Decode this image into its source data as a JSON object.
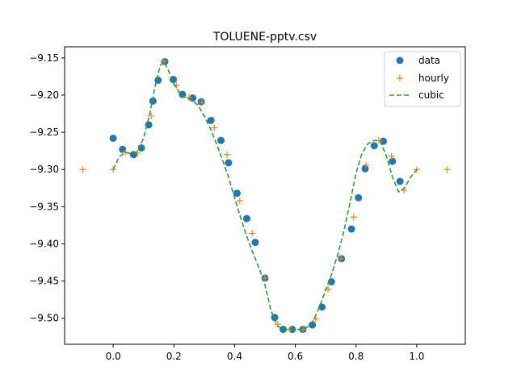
{
  "chart_data": {
    "type": "line",
    "title": "TOLUENE-pptv.csv",
    "xlabel": "",
    "ylabel": "",
    "xlim": [
      -0.16,
      1.16
    ],
    "ylim": [
      -9.535,
      -9.135
    ],
    "xticks": [
      0.0,
      0.2,
      0.4,
      0.6,
      0.8,
      1.0
    ],
    "xtick_labels": [
      "0.0",
      "0.2",
      "0.4",
      "0.6",
      "0.8",
      "1.0"
    ],
    "yticks": [
      -9.15,
      -9.2,
      -9.25,
      -9.3,
      -9.35,
      -9.4,
      -9.45,
      -9.5
    ],
    "ytick_labels": [
      "−9.15",
      "−9.20",
      "−9.25",
      "−9.30",
      "−9.35",
      "−9.40",
      "−9.45",
      "−9.50"
    ],
    "grid": false,
    "legend_position": "top-right",
    "series": [
      {
        "name": "data",
        "marker": "circle",
        "color": "#1f77b4",
        "x": [
          0.0,
          0.031,
          0.067,
          0.093,
          0.117,
          0.131,
          0.148,
          0.17,
          0.198,
          0.228,
          0.262,
          0.29,
          0.322,
          0.355,
          0.38,
          0.408,
          0.44,
          0.468,
          0.5,
          0.532,
          0.56,
          0.59,
          0.625,
          0.656,
          0.688,
          0.719,
          0.752,
          0.785,
          0.808,
          0.83,
          0.86,
          0.89,
          0.92,
          0.945
        ],
        "y": [
          -9.258,
          -9.273,
          -9.28,
          -9.271,
          -9.24,
          -9.208,
          -9.18,
          -9.155,
          -9.179,
          -9.199,
          -9.204,
          -9.209,
          -9.234,
          -9.261,
          -9.291,
          -9.332,
          -9.366,
          -9.398,
          -9.446,
          -9.499,
          -9.515,
          -9.515,
          -9.515,
          -9.509,
          -9.485,
          -9.451,
          -9.42,
          -9.38,
          -9.338,
          -9.299,
          -9.268,
          -9.262,
          -9.289,
          -9.316
        ]
      },
      {
        "name": "hourly",
        "marker": "plus",
        "color": "#ff7f0e",
        "x": [
          -0.1,
          0.0,
          0.04,
          0.08,
          0.125,
          0.167,
          0.208,
          0.25,
          0.292,
          0.333,
          0.375,
          0.417,
          0.458,
          0.5,
          0.542,
          0.583,
          0.625,
          0.667,
          0.708,
          0.75,
          0.792,
          0.833,
          0.875,
          0.917,
          0.958,
          1.0,
          1.1
        ],
        "y": [
          -9.3,
          -9.3,
          -9.277,
          -9.278,
          -9.228,
          -9.155,
          -9.187,
          -9.203,
          -9.21,
          -9.244,
          -9.28,
          -9.342,
          -9.386,
          -9.446,
          -9.508,
          -9.515,
          -9.515,
          -9.501,
          -9.461,
          -9.42,
          -9.364,
          -9.294,
          -9.261,
          -9.282,
          -9.328,
          -9.3,
          -9.3
        ]
      },
      {
        "name": "cubic",
        "line_style": "dashed",
        "color": "#2ca02c",
        "x": [
          0.0,
          0.02,
          0.04,
          0.06,
          0.08,
          0.1,
          0.12,
          0.14,
          0.155,
          0.167,
          0.18,
          0.2,
          0.22,
          0.24,
          0.26,
          0.28,
          0.3,
          0.32,
          0.34,
          0.36,
          0.38,
          0.4,
          0.42,
          0.44,
          0.46,
          0.48,
          0.5,
          0.52,
          0.54,
          0.56,
          0.58,
          0.6,
          0.62,
          0.64,
          0.66,
          0.68,
          0.7,
          0.72,
          0.74,
          0.76,
          0.78,
          0.8,
          0.82,
          0.84,
          0.86,
          0.88,
          0.9,
          0.92,
          0.94,
          0.96,
          0.98,
          1.0
        ],
        "y": [
          -9.3,
          -9.283,
          -9.277,
          -9.279,
          -9.276,
          -9.258,
          -9.226,
          -9.185,
          -9.16,
          -9.155,
          -9.165,
          -9.185,
          -9.198,
          -9.204,
          -9.207,
          -9.214,
          -9.228,
          -9.245,
          -9.265,
          -9.287,
          -9.31,
          -9.338,
          -9.365,
          -9.39,
          -9.412,
          -9.432,
          -9.455,
          -9.49,
          -9.51,
          -9.515,
          -9.515,
          -9.515,
          -9.515,
          -9.512,
          -9.503,
          -9.484,
          -9.462,
          -9.44,
          -9.414,
          -9.383,
          -9.345,
          -9.305,
          -9.278,
          -9.265,
          -9.261,
          -9.262,
          -9.282,
          -9.31,
          -9.33,
          -9.325,
          -9.31,
          -9.3
        ]
      }
    ]
  }
}
